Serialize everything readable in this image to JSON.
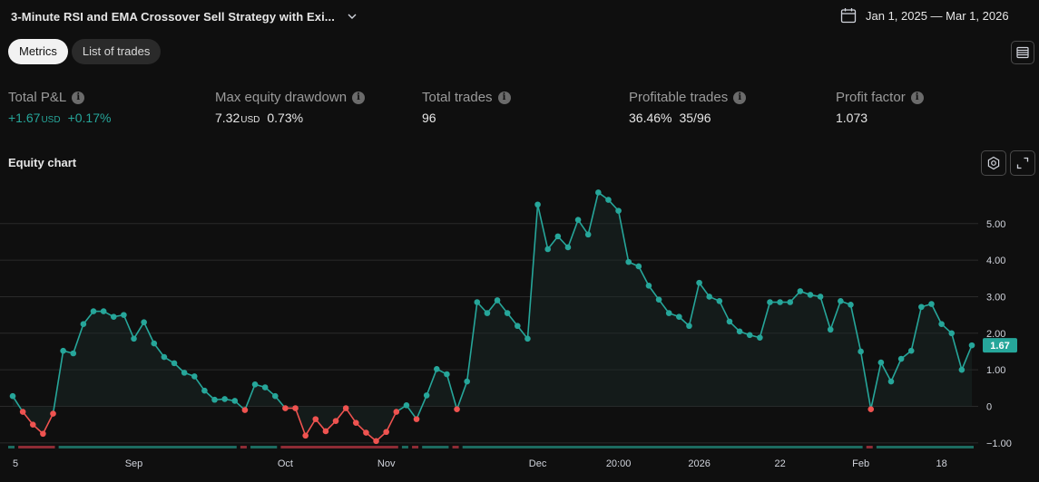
{
  "header": {
    "title": "3-Minute RSI and EMA Crossover Sell Strategy with Exi...",
    "date_range": "Jan 1, 2025 — Mar 1, 2026"
  },
  "tabs": [
    {
      "label": "Metrics",
      "active": true
    },
    {
      "label": "List of trades",
      "active": false
    }
  ],
  "metrics": {
    "total_pnl": {
      "label": "Total P&L",
      "value": "+1.67",
      "unit": "USD",
      "percent": "+0.17%"
    },
    "max_drawdown": {
      "label": "Max equity drawdown",
      "value": "7.32",
      "unit": "USD",
      "percent": "0.73%"
    },
    "total_trades": {
      "label": "Total trades",
      "value": "96"
    },
    "profitable_trades": {
      "label": "Profitable trades",
      "percent": "36.46%",
      "ratio": "35/96"
    },
    "profit_factor": {
      "label": "Profit factor",
      "value": "1.073"
    }
  },
  "equity_chart": {
    "title": "Equity chart",
    "last_value_label": "1.67"
  },
  "colors": {
    "positive": "#26a69a",
    "negative": "#ef5350",
    "band_positive": "#1c6b60",
    "band_negative": "#8e2b35"
  },
  "chart_data": {
    "type": "line",
    "title": "Equity chart",
    "y_ticks": [
      -1,
      0,
      1,
      2,
      3,
      4,
      5
    ],
    "y_tick_labels": [
      "−1.00",
      "0",
      "1.00",
      "2.00",
      "3.00",
      "4.00",
      "5.00"
    ],
    "ylim": [
      -1.1,
      5.8
    ],
    "x_tick_labels": [
      {
        "label": "5",
        "index": 0
      },
      {
        "label": "Sep",
        "index": 12
      },
      {
        "label": "Oct",
        "index": 27
      },
      {
        "label": "Nov",
        "index": 37
      },
      {
        "label": "Dec",
        "index": 52
      },
      {
        "label": "20:00",
        "index": 60
      },
      {
        "label": "2026",
        "index": 68
      },
      {
        "label": "22",
        "index": 76
      },
      {
        "label": "Feb",
        "index": 84
      },
      {
        "label": "18",
        "index": 92
      }
    ],
    "last_value": 1.67,
    "series": [
      {
        "name": "Equity",
        "values": [
          0.28,
          -0.15,
          -0.5,
          -0.75,
          -0.2,
          1.52,
          1.45,
          2.25,
          2.6,
          2.6,
          2.45,
          2.5,
          1.85,
          2.3,
          1.72,
          1.35,
          1.18,
          0.92,
          0.82,
          0.43,
          0.18,
          0.2,
          0.15,
          -0.1,
          0.6,
          0.52,
          0.28,
          -0.05,
          -0.05,
          -0.8,
          -0.35,
          -0.68,
          -0.4,
          -0.05,
          -0.45,
          -0.72,
          -0.95,
          -0.7,
          -0.15,
          0.03,
          -0.35,
          0.3,
          1.02,
          0.88,
          -0.08,
          0.68,
          2.85,
          2.55,
          2.9,
          2.55,
          2.2,
          1.85,
          5.52,
          4.3,
          4.65,
          4.35,
          5.1,
          4.7,
          5.85,
          5.65,
          5.35,
          3.95,
          3.83,
          3.3,
          2.92,
          2.55,
          2.45,
          2.2,
          3.38,
          3.0,
          2.88,
          2.32,
          2.05,
          1.95,
          1.88,
          2.85,
          2.85,
          2.85,
          3.15,
          3.05,
          3.0,
          2.1,
          2.88,
          2.78,
          1.5,
          -0.08,
          1.2,
          0.68,
          1.3,
          1.52,
          2.72,
          2.8,
          2.25,
          2.0,
          1.0,
          1.67
        ]
      }
    ]
  }
}
